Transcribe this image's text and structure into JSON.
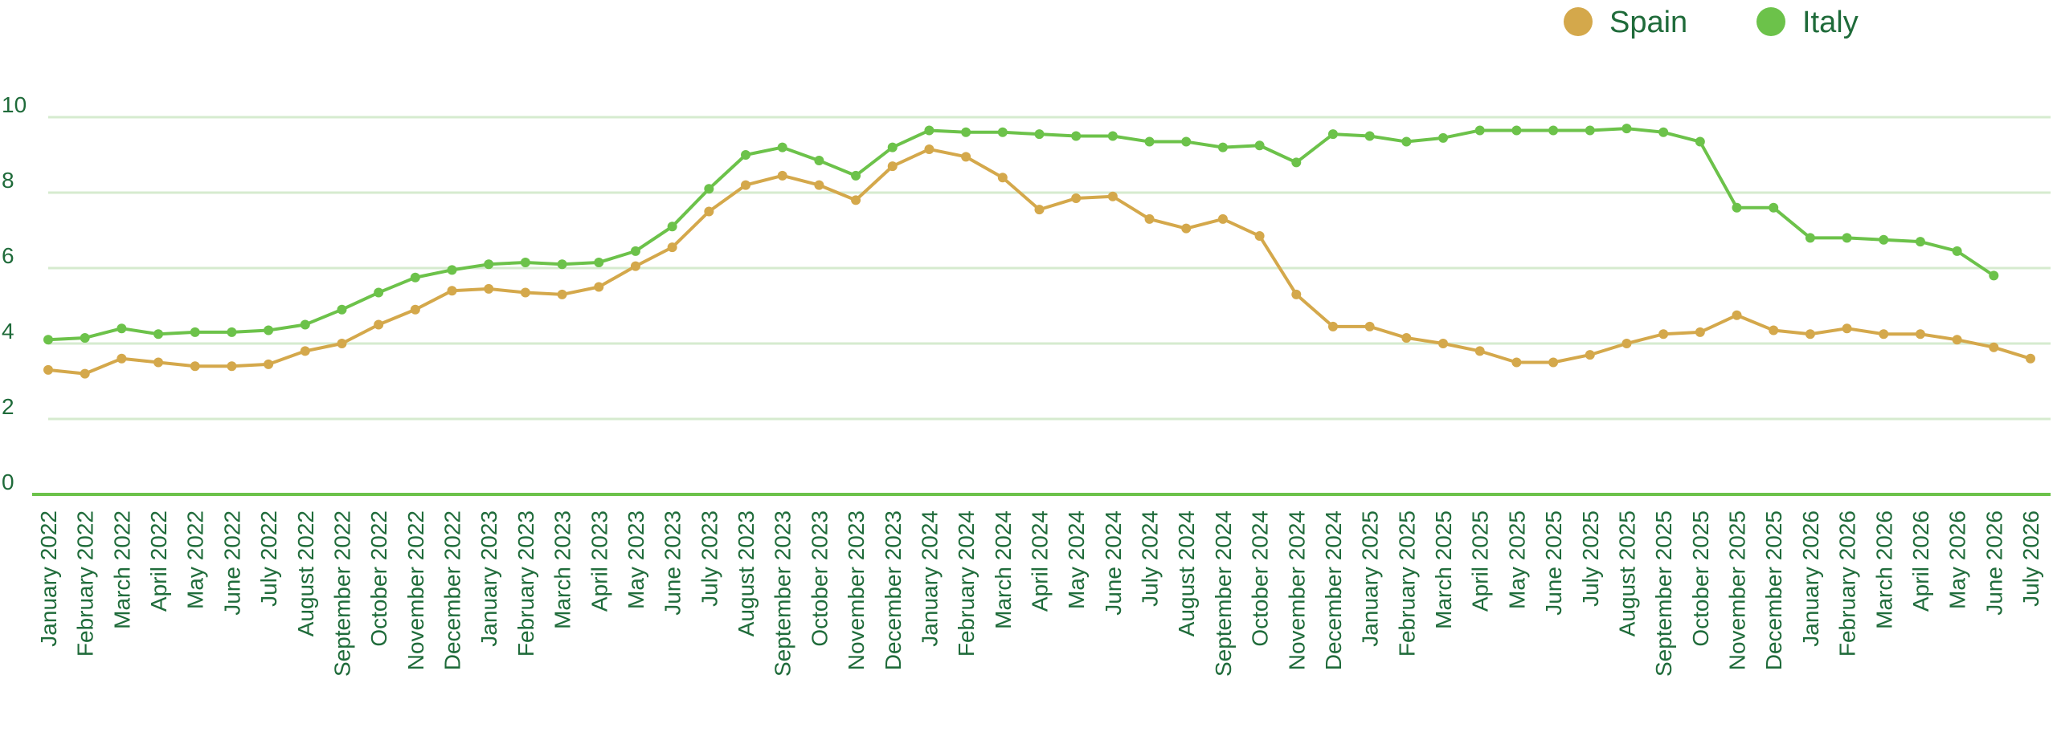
{
  "chart_data": {
    "type": "line",
    "title": "",
    "xlabel": "",
    "ylabel": "",
    "ylim": [
      0,
      10
    ],
    "yticks": [
      0,
      2,
      4,
      6,
      8,
      10
    ],
    "grid": true,
    "legend": "top-right",
    "categories": [
      "January 2022",
      "February 2022",
      "March 2022",
      "April 2022",
      "May 2022",
      "June 2022",
      "July 2022",
      "August 2022",
      "September 2022",
      "October 2022",
      "November 2022",
      "December 2022",
      "January 2023",
      "February 2023",
      "March 2023",
      "April 2023",
      "May 2023",
      "June 2023",
      "July 2023",
      "August 2023",
      "September 2023",
      "October 2023",
      "November 2023",
      "December 2023",
      "January 2024",
      "February 2024",
      "March 2024",
      "April 2024",
      "May 2024",
      "June 2024",
      "July 2024",
      "August 2024",
      "September 2024",
      "October 2024",
      "November 2024",
      "December 2024",
      "January 2025",
      "February 2025",
      "March 2025",
      "April 2025",
      "May 2025",
      "June 2025",
      "July 2025",
      "August 2025",
      "September 2025",
      "October 2025",
      "November 2025",
      "December 2025",
      "January 2026",
      "February 2026",
      "March 2026",
      "April 2026",
      "May 2026",
      "June 2026",
      "July 2026"
    ],
    "series": [
      {
        "name": "Spain",
        "color": "#d4a84b",
        "values": [
          3.3,
          3.2,
          3.6,
          3.5,
          3.4,
          3.4,
          3.45,
          3.8,
          4.0,
          4.5,
          4.9,
          5.4,
          5.45,
          5.35,
          5.3,
          5.5,
          6.05,
          6.55,
          7.5,
          8.2,
          8.45,
          8.2,
          7.8,
          8.7,
          9.15,
          8.95,
          8.4,
          7.55,
          7.85,
          7.9,
          7.3,
          7.05,
          7.3,
          6.85,
          5.3,
          4.45,
          4.45,
          4.15,
          4.0,
          3.8,
          3.5,
          3.5,
          3.7,
          4.0,
          4.25,
          4.3,
          4.75,
          4.35,
          4.25,
          4.4,
          4.25,
          4.25,
          4.1,
          3.9,
          3.6
        ]
      },
      {
        "name": "Italy",
        "color": "#6cc24a",
        "values": [
          4.1,
          4.15,
          4.4,
          4.25,
          4.3,
          4.3,
          4.35,
          4.5,
          4.9,
          5.35,
          5.75,
          5.95,
          6.1,
          6.15,
          6.1,
          6.15,
          6.45,
          7.1,
          8.1,
          9.0,
          9.2,
          8.85,
          8.45,
          9.2,
          9.65,
          9.6,
          9.6,
          9.55,
          9.5,
          9.5,
          9.35,
          9.35,
          9.2,
          9.25,
          8.8,
          9.55,
          9.5,
          9.35,
          9.45,
          9.65,
          9.65,
          9.65,
          9.65,
          9.7,
          9.6,
          9.35,
          7.6,
          7.6,
          6.8,
          6.8,
          6.75,
          6.7,
          6.45,
          5.8,
          null
        ]
      }
    ]
  }
}
